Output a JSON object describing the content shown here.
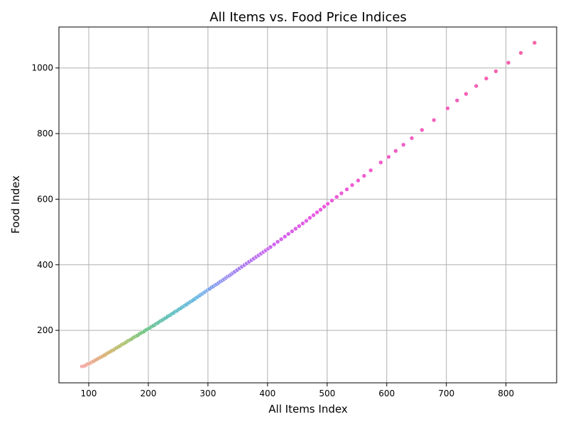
{
  "chart_data": {
    "type": "scatter",
    "title": "All Items vs. Food Price Indices",
    "xlabel": "All Items Index",
    "ylabel": "Food Index",
    "xlim": [
      50,
      885
    ],
    "ylim": [
      40,
      1125
    ],
    "xticks": [
      100,
      200,
      300,
      400,
      500,
      600,
      700,
      800
    ],
    "yticks": [
      200,
      400,
      600,
      800,
      1000
    ],
    "grid": true,
    "legend": "none",
    "point_color_scheme": "hue gradient by position: red → olive/green → teal → blue → purple → magenta/pink",
    "points": [
      [
        89,
        90
      ],
      [
        91,
        91
      ],
      [
        93,
        92
      ],
      [
        95,
        94
      ],
      [
        97,
        96
      ],
      [
        99,
        98
      ],
      [
        101,
        99
      ],
      [
        103,
        101
      ],
      [
        105,
        103
      ],
      [
        107,
        105
      ],
      [
        109,
        107
      ],
      [
        111,
        109
      ],
      [
        113,
        111
      ],
      [
        115,
        113
      ],
      [
        117,
        115
      ],
      [
        119,
        117
      ],
      [
        121,
        119
      ],
      [
        123,
        121
      ],
      [
        125,
        123
      ],
      [
        127,
        125
      ],
      [
        129,
        127
      ],
      [
        131,
        130
      ],
      [
        133,
        132
      ],
      [
        135,
        134
      ],
      [
        137,
        136
      ],
      [
        139,
        138
      ],
      [
        141,
        140
      ],
      [
        143,
        142
      ],
      [
        145,
        145
      ],
      [
        147,
        147
      ],
      [
        149,
        149
      ],
      [
        151,
        151
      ],
      [
        153,
        153
      ],
      [
        155,
        156
      ],
      [
        157,
        158
      ],
      [
        159,
        160
      ],
      [
        161,
        162
      ],
      [
        163,
        164
      ],
      [
        165,
        167
      ],
      [
        167,
        169
      ],
      [
        169,
        171
      ],
      [
        171,
        173
      ],
      [
        173,
        175
      ],
      [
        175,
        178
      ],
      [
        177,
        180
      ],
      [
        179,
        182
      ],
      [
        181,
        184
      ],
      [
        183,
        186
      ],
      [
        185,
        189
      ],
      [
        187,
        191
      ],
      [
        189,
        193
      ],
      [
        191,
        195
      ],
      [
        193,
        197
      ],
      [
        195,
        200
      ],
      [
        197,
        202
      ],
      [
        199,
        204
      ],
      [
        201,
        206
      ],
      [
        203,
        208
      ],
      [
        205,
        211
      ],
      [
        207,
        213
      ],
      [
        209,
        215
      ],
      [
        211,
        217
      ],
      [
        213,
        220
      ],
      [
        215,
        222
      ],
      [
        217,
        224
      ],
      [
        219,
        227
      ],
      [
        221,
        229
      ],
      [
        223,
        231
      ],
      [
        225,
        233
      ],
      [
        227,
        236
      ],
      [
        229,
        238
      ],
      [
        231,
        240
      ],
      [
        233,
        243
      ],
      [
        235,
        245
      ],
      [
        237,
        247
      ],
      [
        239,
        250
      ],
      [
        241,
        252
      ],
      [
        243,
        254
      ],
      [
        245,
        257
      ],
      [
        247,
        259
      ],
      [
        249,
        261
      ],
      [
        251,
        264
      ],
      [
        253,
        266
      ],
      [
        255,
        268
      ],
      [
        257,
        271
      ],
      [
        259,
        273
      ],
      [
        261,
        276
      ],
      [
        263,
        278
      ],
      [
        265,
        280
      ],
      [
        267,
        283
      ],
      [
        269,
        285
      ],
      [
        271,
        288
      ],
      [
        273,
        290
      ],
      [
        275,
        292
      ],
      [
        277,
        295
      ],
      [
        279,
        297
      ],
      [
        281,
        300
      ],
      [
        283,
        302
      ],
      [
        285,
        305
      ],
      [
        287,
        307
      ],
      [
        289,
        310
      ],
      [
        291,
        312
      ],
      [
        293,
        315
      ],
      [
        295,
        317
      ],
      [
        297,
        320
      ],
      [
        299,
        322
      ],
      [
        301,
        325
      ],
      [
        303,
        327
      ],
      [
        306,
        331
      ],
      [
        309,
        334
      ],
      [
        312,
        338
      ],
      [
        315,
        341
      ],
      [
        318,
        345
      ],
      [
        321,
        349
      ],
      [
        324,
        352
      ],
      [
        327,
        356
      ],
      [
        330,
        360
      ],
      [
        333,
        364
      ],
      [
        336,
        367
      ],
      [
        339,
        371
      ],
      [
        342,
        375
      ],
      [
        345,
        379
      ],
      [
        349,
        384
      ],
      [
        353,
        389
      ],
      [
        357,
        394
      ],
      [
        361,
        399
      ],
      [
        365,
        404
      ],
      [
        369,
        409
      ],
      [
        373,
        414
      ],
      [
        377,
        419
      ],
      [
        381,
        424
      ],
      [
        385,
        429
      ],
      [
        389,
        434
      ],
      [
        393,
        439
      ],
      [
        397,
        444
      ],
      [
        401,
        449
      ],
      [
        405,
        454
      ],
      [
        411,
        462
      ],
      [
        417,
        470
      ],
      [
        423,
        478
      ],
      [
        429,
        486
      ],
      [
        435,
        494
      ],
      [
        441,
        502
      ],
      [
        447,
        510
      ],
      [
        453,
        518
      ],
      [
        459,
        526
      ],
      [
        465,
        534
      ],
      [
        471,
        543
      ],
      [
        477,
        551
      ],
      [
        483,
        560
      ],
      [
        489,
        568
      ],
      [
        495,
        577
      ],
      [
        501,
        586
      ],
      [
        508,
        596
      ],
      [
        516,
        607
      ],
      [
        524,
        618
      ],
      [
        533,
        630
      ],
      [
        542,
        643
      ],
      [
        552,
        657
      ],
      [
        562,
        671
      ],
      [
        573,
        688
      ],
      [
        590,
        712
      ],
      [
        603,
        729
      ],
      [
        615,
        747
      ],
      [
        628,
        766
      ],
      [
        642,
        786
      ],
      [
        659,
        811
      ],
      [
        679,
        841
      ],
      [
        702,
        877
      ],
      [
        718,
        901
      ],
      [
        733,
        921
      ],
      [
        750,
        945
      ],
      [
        767,
        968
      ],
      [
        783,
        990
      ],
      [
        804,
        1016
      ],
      [
        825,
        1046
      ],
      [
        848,
        1077
      ]
    ]
  }
}
